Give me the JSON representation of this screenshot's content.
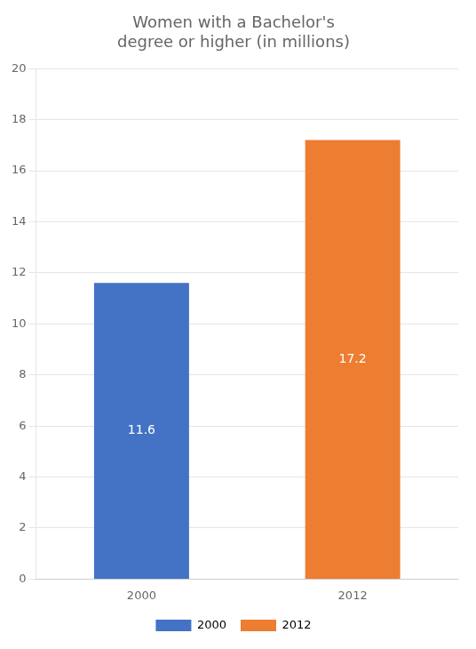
{
  "chart_data": {
    "type": "bar",
    "title": "Women with a Bachelor's\ndegree or higher (in millions)",
    "categories": [
      "2000",
      "2012"
    ],
    "values": [
      11.6,
      17.2
    ],
    "colors": [
      "#4472C4",
      "#ED7D31"
    ],
    "ylim": [
      0,
      20
    ],
    "yticks": [
      0,
      2,
      4,
      6,
      8,
      10,
      12,
      14,
      16,
      18,
      20
    ],
    "grid": true,
    "legend": "bottom",
    "data_labels": true
  }
}
